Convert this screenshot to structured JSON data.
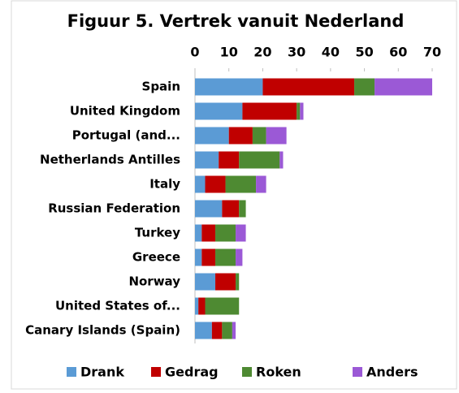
{
  "chart_data": {
    "type": "bar",
    "orientation": "horizontal",
    "stacked": true,
    "title": "Figuur 5. Vertrek vanuit Nederland",
    "categories": [
      "Spain",
      "United Kingdom",
      "Portugal (and...",
      "Netherlands Antilles",
      "Italy",
      "Russian Federation",
      "Turkey",
      "Greece",
      "Norway",
      "United States of...",
      "Canary Islands (Spain)"
    ],
    "series": [
      {
        "name": "Drank",
        "color": "#5b9bd5",
        "values": [
          20,
          14,
          10,
          7,
          3,
          8,
          2,
          2,
          6,
          1,
          5
        ]
      },
      {
        "name": "Gedrag",
        "color": "#c00000",
        "values": [
          27,
          16,
          7,
          6,
          6,
          5,
          4,
          4,
          6,
          2,
          3
        ]
      },
      {
        "name": "Roken",
        "color": "#4e8a32",
        "values": [
          6,
          1,
          4,
          12,
          9,
          2,
          6,
          6,
          1,
          10,
          3
        ]
      },
      {
        "name": "Anders",
        "color": "#9b59d6",
        "values": [
          17,
          1,
          6,
          1,
          3,
          0,
          3,
          2,
          0,
          0,
          1
        ]
      }
    ],
    "xlim": [
      0,
      70
    ],
    "xticks": [
      0,
      10,
      20,
      30,
      40,
      50,
      60,
      70
    ],
    "legend": "bottom"
  }
}
